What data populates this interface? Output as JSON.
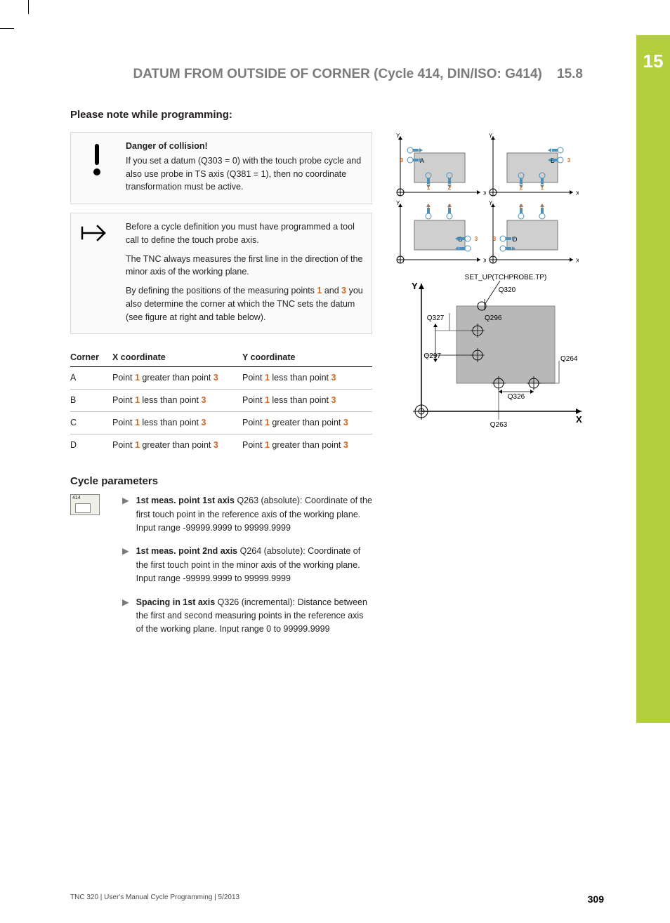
{
  "chapter_number": "15",
  "header": {
    "title": "DATUM FROM OUTSIDE OF CORNER (Cycle 414, DIN/ISO: G414)",
    "section_num": "15.8"
  },
  "section_heading": "Please note while programming:",
  "danger_box": {
    "title": "Danger of collision!",
    "text": "If you set a datum (Q303 = 0) with the touch probe cycle and also use probe in TS axis (Q381 = 1), then no coordinate transformation must be active."
  },
  "info_box": {
    "p1": "Before a cycle definition you must have programmed a tool call to define the touch probe axis.",
    "p2": "The TNC always measures the first line in the direction of the minor axis of the working plane.",
    "p3_prefix": "By defining the positions of the measuring points ",
    "p3_and": " and ",
    "p3_suffix": " you also determine the corner at which the TNC sets the datum (see figure at right and table below).",
    "pt1": "1",
    "pt3": "3"
  },
  "table": {
    "headers": {
      "c1": "Corner",
      "c2": "X coordinate",
      "c3": "Y coordinate"
    },
    "rows": [
      {
        "corner": "A",
        "x_pre": "Point ",
        "x_mid": " greater than point ",
        "y_pre": "Point ",
        "y_mid": " less than point "
      },
      {
        "corner": "B",
        "x_pre": "Point ",
        "x_mid": " less than point ",
        "y_pre": "Point ",
        "y_mid": " less than point "
      },
      {
        "corner": "C",
        "x_pre": "Point ",
        "x_mid": " less than point ",
        "y_pre": "Point ",
        "y_mid": " greater than point "
      },
      {
        "corner": "D",
        "x_pre": "Point ",
        "x_mid": " greater than point ",
        "y_pre": "Point ",
        "y_mid": " greater than point "
      }
    ],
    "pt1": "1",
    "pt3": "3"
  },
  "cycle_params_heading": "Cycle parameters",
  "params": [
    {
      "bold": "1st meas. point 1st axis",
      "rest": " Q263 (absolute): Coordinate of the first touch point in the reference axis of the working plane. Input range -99999.9999 to 99999.9999"
    },
    {
      "bold": "1st meas. point 2nd axis",
      "rest": " Q264 (absolute): Coordinate of the first touch point in the minor axis of the working plane. Input range -99999.9999 to 99999.9999"
    },
    {
      "bold": "Spacing in 1st axis",
      "rest": " Q326 (incremental): Distance between the first and second measuring points in the reference axis of the working plane. Input range 0 to 99999.9999"
    }
  ],
  "param_icon_label": "414",
  "quad_diagram": {
    "panels": [
      {
        "label": "A",
        "pt3_side": "left",
        "nums_bottom": [
          "1",
          "2"
        ],
        "probe_dir": "down"
      },
      {
        "label": "B",
        "pt3_side": "right",
        "nums_bottom": [
          "2",
          "1"
        ],
        "probe_dir": "down"
      },
      {
        "label": "C",
        "pt3_side": "right",
        "nums_top": [
          "1",
          "2"
        ],
        "probe_dir": "up"
      },
      {
        "label": "D",
        "pt3_side": "left",
        "nums_top": [
          "2",
          "1"
        ],
        "probe_dir": "up"
      }
    ],
    "colors": {
      "axis": "#000",
      "rect": "#cfcfcf",
      "rect_stroke": "#777",
      "probe": "#4a90b8",
      "accent": "#d2691e"
    }
  },
  "tech_diagram": {
    "title": "SET_UP(TCHPROBE.TP)",
    "labels": [
      "Q320",
      "Q327",
      "Q296",
      "Q297",
      "Q264",
      "Q326",
      "Q263"
    ],
    "axis_x": "X",
    "axis_y": "Y",
    "colors": {
      "rect": "#b8b8b8",
      "axis": "#000"
    }
  },
  "footer": {
    "left": "TNC 320 | User's Manual Cycle Programming | 5/2013",
    "page": "309"
  }
}
